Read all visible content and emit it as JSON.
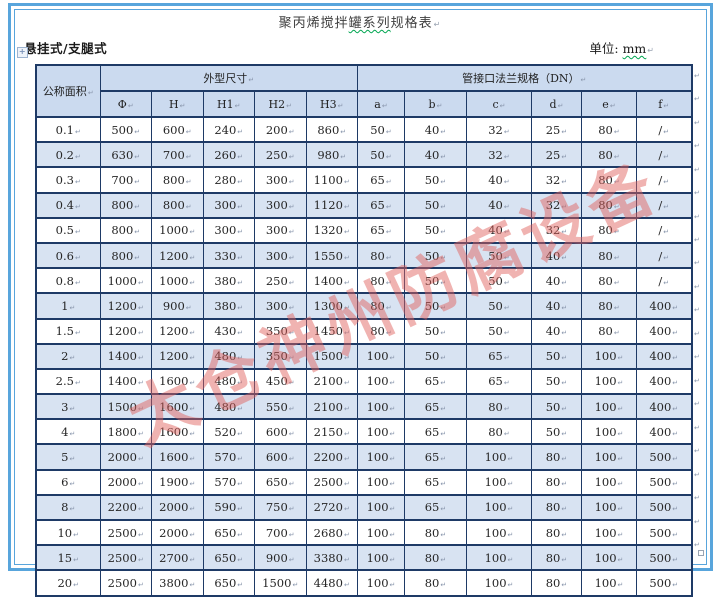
{
  "page": {
    "title": {
      "part1": "聚丙烯搅拌",
      "part2_underlined": "罐系列",
      "part3": "规格表"
    },
    "subtitle_left": "悬挂式/支腿式",
    "unit_label": "单位: ",
    "unit_value": "mm",
    "watermark": "太仓神州防腐设备"
  },
  "marks": {
    "cell_end": "↵",
    "table_handle": "+"
  },
  "colors": {
    "table_border": "#1e3a66",
    "page_border_blue": "#58a5dc",
    "header_fill": "#cbdaef",
    "stripe_fill": "#d8e3f2",
    "watermark_red": "#e0605c",
    "spellcheck_green": "#00a550"
  },
  "table": {
    "header": {
      "col_area": "公称面积",
      "group_dimensions": "外型尺寸",
      "group_flange": "管接口法兰规格（DN）",
      "dim_cols": [
        "Φ",
        "H",
        "H1",
        "H2",
        "H3"
      ],
      "flange_cols": [
        "a",
        "b",
        "c",
        "d",
        "e",
        "f"
      ]
    },
    "rows": [
      {
        "area": "0.1",
        "values": [
          "500",
          "600",
          "240",
          "200",
          "860",
          "50",
          "40",
          "32",
          "25",
          "80",
          "/"
        ]
      },
      {
        "area": "0.2",
        "values": [
          "630",
          "700",
          "260",
          "250",
          "980",
          "50",
          "40",
          "32",
          "25",
          "80",
          "/"
        ]
      },
      {
        "area": "0.3",
        "values": [
          "700",
          "800",
          "280",
          "300",
          "1100",
          "65",
          "50",
          "40",
          "32",
          "80",
          "/"
        ]
      },
      {
        "area": "0.4",
        "values": [
          "800",
          "800",
          "300",
          "300",
          "1120",
          "65",
          "50",
          "40",
          "32",
          "80",
          "/"
        ]
      },
      {
        "area": "0.5",
        "values": [
          "800",
          "1000",
          "300",
          "300",
          "1320",
          "65",
          "50",
          "40",
          "32",
          "80",
          "/"
        ]
      },
      {
        "area": "0.6",
        "values": [
          "800",
          "1200",
          "330",
          "300",
          "1550",
          "80",
          "50",
          "50",
          "40",
          "80",
          "/"
        ]
      },
      {
        "area": "0.8",
        "values": [
          "1000",
          "1000",
          "380",
          "250",
          "1400",
          "80",
          "50",
          "50",
          "40",
          "80",
          "/"
        ]
      },
      {
        "area": "1",
        "values": [
          "1200",
          "900",
          "380",
          "300",
          "1300",
          "80",
          "50",
          "50",
          "40",
          "80",
          "400"
        ]
      },
      {
        "area": "1.5",
        "values": [
          "1200",
          "1200",
          "430",
          "350",
          "1450",
          "80",
          "50",
          "50",
          "40",
          "80",
          "400"
        ]
      },
      {
        "area": "2",
        "values": [
          "1400",
          "1200",
          "480",
          "350",
          "1500",
          "100",
          "50",
          "65",
          "50",
          "100",
          "400"
        ]
      },
      {
        "area": "2.5",
        "values": [
          "1400",
          "1600",
          "480",
          "450",
          "2100",
          "100",
          "65",
          "65",
          "50",
          "100",
          "400"
        ]
      },
      {
        "area": "3",
        "values": [
          "1500",
          "1600",
          "480",
          "550",
          "2100",
          "100",
          "65",
          "80",
          "50",
          "100",
          "400"
        ]
      },
      {
        "area": "4",
        "values": [
          "1800",
          "1600",
          "520",
          "600",
          "2150",
          "100",
          "65",
          "80",
          "50",
          "100",
          "400"
        ]
      },
      {
        "area": "5",
        "values": [
          "2000",
          "1600",
          "570",
          "600",
          "2200",
          "100",
          "65",
          "100",
          "80",
          "100",
          "500"
        ]
      },
      {
        "area": "6",
        "values": [
          "2000",
          "1900",
          "570",
          "650",
          "2500",
          "100",
          "65",
          "100",
          "80",
          "100",
          "500"
        ]
      },
      {
        "area": "8",
        "values": [
          "2200",
          "2000",
          "590",
          "750",
          "2720",
          "100",
          "65",
          "100",
          "80",
          "100",
          "500"
        ]
      },
      {
        "area": "10",
        "values": [
          "2500",
          "2000",
          "650",
          "700",
          "2680",
          "100",
          "80",
          "100",
          "80",
          "100",
          "500"
        ]
      },
      {
        "area": "15",
        "values": [
          "2500",
          "2700",
          "650",
          "900",
          "3380",
          "100",
          "80",
          "100",
          "80",
          "100",
          "500"
        ]
      },
      {
        "area": "20",
        "values": [
          "2500",
          "3800",
          "650",
          "1500",
          "4480",
          "100",
          "80",
          "100",
          "80",
          "100",
          "500"
        ]
      }
    ]
  }
}
